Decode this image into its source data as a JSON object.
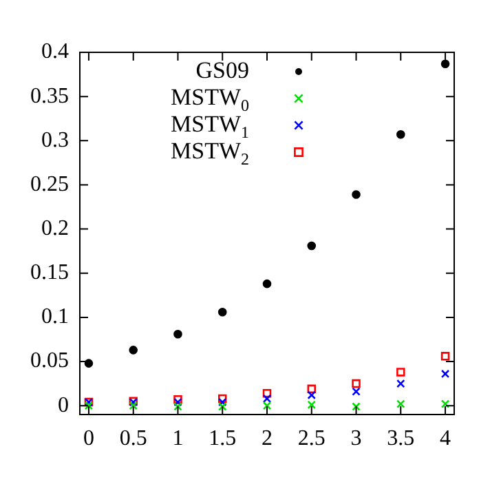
{
  "chart_data": {
    "type": "scatter",
    "x": [
      0,
      0.5,
      1,
      1.5,
      2,
      2.5,
      3,
      3.5,
      4
    ],
    "series": [
      {
        "name": "GS09",
        "color": "#000000",
        "marker": "circle",
        "values": [
          0.048,
          0.063,
          0.081,
          0.106,
          0.138,
          0.181,
          0.239,
          0.307,
          0.387
        ]
      },
      {
        "name": "MSTW$_{0}$",
        "color": "#00e000",
        "marker": "cross",
        "values": [
          0,
          0,
          -0.001,
          -0.001,
          0,
          0.001,
          -0.001,
          0.002,
          0.002
        ]
      },
      {
        "name": "MSTW$_{1}$",
        "color": "#0000ff",
        "marker": "cross",
        "values": [
          0.004,
          0.004,
          0.004,
          0.004,
          0.008,
          0.012,
          0.016,
          0.025,
          0.036
        ]
      },
      {
        "name": "MSTW$_{2}$",
        "color": "#ff0000",
        "marker": "square",
        "values": [
          0.004,
          0.005,
          0.007,
          0.008,
          0.014,
          0.019,
          0.025,
          0.038,
          0.056
        ]
      }
    ],
    "xlim": [
      -0.1,
      4.1
    ],
    "xticks": [
      0,
      0.5,
      1,
      1.5,
      2,
      2.5,
      3,
      3.5,
      4
    ],
    "ylim": [
      -0.01,
      0.4
    ],
    "yticks": [
      0,
      0.05,
      0.1,
      0.15,
      0.2,
      0.25,
      0.3,
      0.35,
      0.4
    ],
    "grid": false,
    "legend": "top"
  }
}
